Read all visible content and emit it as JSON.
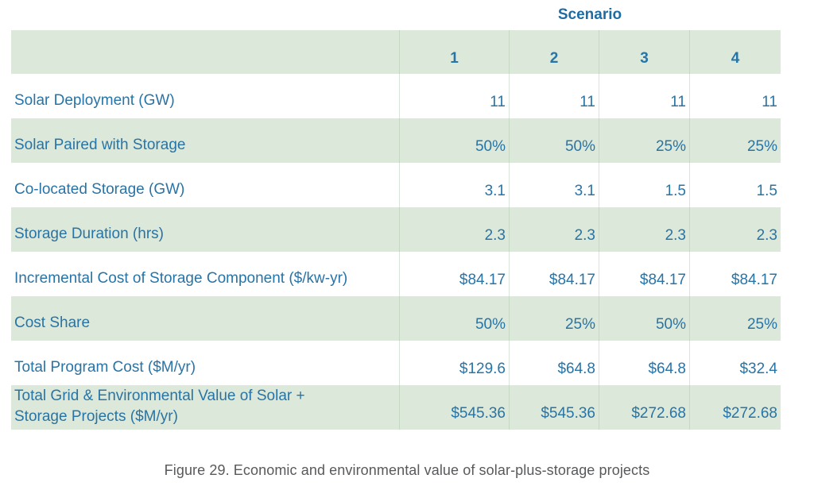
{
  "table": {
    "scenario_header": "Scenario",
    "column_headers": [
      "1",
      "2",
      "3",
      "4"
    ],
    "rows": [
      {
        "label": "Solar Deployment (GW)",
        "values": [
          "11",
          "11",
          "11",
          "11"
        ]
      },
      {
        "label": "Solar Paired with Storage",
        "values": [
          "50%",
          "50%",
          "25%",
          "25%"
        ]
      },
      {
        "label": "Co-located Storage (GW)",
        "values": [
          "3.1",
          "3.1",
          "1.5",
          "1.5"
        ]
      },
      {
        "label": "Storage Duration (hrs)",
        "values": [
          "2.3",
          "2.3",
          "2.3",
          "2.3"
        ]
      },
      {
        "label": "Incremental Cost of Storage Component ($/kw-yr)",
        "values": [
          "$84.17",
          "$84.17",
          "$84.17",
          "$84.17"
        ]
      },
      {
        "label": "Cost Share",
        "values": [
          "50%",
          "25%",
          "50%",
          "25%"
        ]
      },
      {
        "label": "Total Program Cost ($M/yr)",
        "values": [
          "$129.6",
          "$64.8",
          "$64.8",
          "$32.4"
        ]
      },
      {
        "label": "Total Grid & Environmental Value of Solar +\nStorage Projects ($M/yr)",
        "values": [
          "$545.36",
          "$545.36",
          "$272.68",
          "$272.68"
        ]
      }
    ]
  },
  "caption": "Figure 29. Economic and environmental value of solar-plus-storage projects",
  "colors": {
    "stripe_green": "#dce8d9",
    "text_blue": "#2874a6",
    "header_blue": "#1e6ca3",
    "caption_gray": "#58595b"
  }
}
